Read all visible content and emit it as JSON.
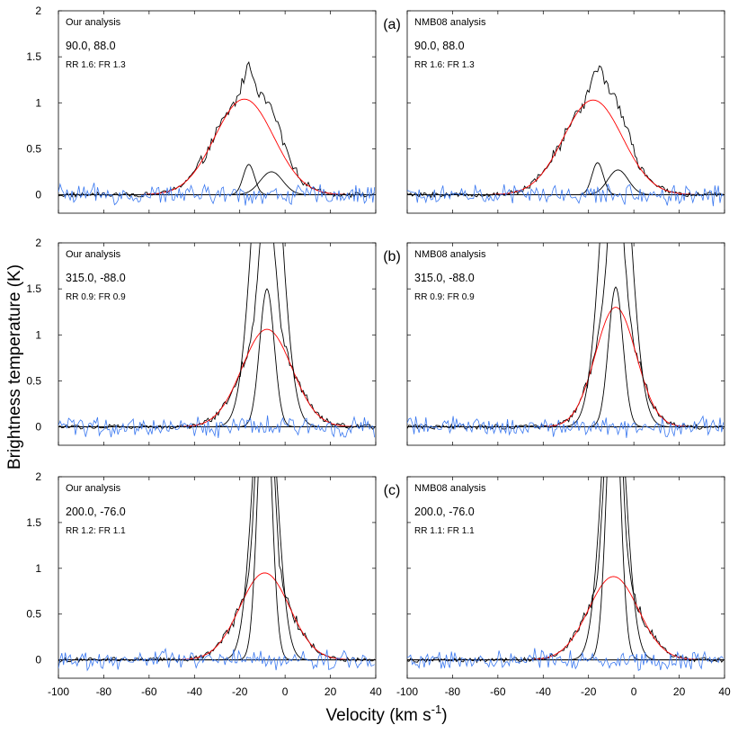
{
  "figure": {
    "ylabel": "Brightness temperature (K)",
    "xlabel_main": "Velocity (km s",
    "xlabel_exp": "-1",
    "xlabel_close": ")"
  },
  "chart_data": [
    {
      "type": "line",
      "row": 0,
      "side": "left",
      "panel_label": "(a)",
      "title": "Our analysis",
      "coords": "90.0, 88.0",
      "ratio": "RR 1.6: FR 1.3",
      "xlim": [
        -100,
        40
      ],
      "ylim": [
        -0.2,
        2
      ],
      "xticks": [
        -100,
        -80,
        -60,
        -40,
        -20,
        0,
        20,
        40
      ],
      "yticks": [
        0,
        0.5,
        1,
        1.5,
        2
      ],
      "ytick_labels": [
        "0",
        "0.5",
        "1",
        "1.5",
        "2"
      ],
      "xtick_labels": [
        "-100",
        "-80",
        "-60",
        "-40",
        "-20",
        "0",
        "20",
        "40"
      ],
      "series": [
        {
          "name": "observed",
          "color": "#000000",
          "kind": "observed"
        },
        {
          "name": "gaussian fit",
          "color": "#ff0000",
          "amp": 1.04,
          "center": -18,
          "sigma": 13
        },
        {
          "name": "narrow component 1",
          "color": "#000000",
          "amp": 0.33,
          "center": -16,
          "sigma": 2.5
        },
        {
          "name": "narrow component 2",
          "color": "#000000",
          "amp": 0.25,
          "center": -6,
          "sigma": 5
        },
        {
          "name": "residual",
          "color": "#3a78f0",
          "kind": "residual"
        }
      ]
    },
    {
      "type": "line",
      "row": 0,
      "side": "right",
      "panel_label": "",
      "title": "NMB08 analysis",
      "coords": "90.0, 88.0",
      "ratio": "RR 1.6: FR 1.3",
      "xlim": [
        -100,
        40
      ],
      "ylim": [
        -0.2,
        2
      ],
      "xticks": [
        -100,
        -80,
        -60,
        -40,
        -20,
        0,
        20,
        40
      ],
      "yticks": [
        0,
        0.5,
        1,
        1.5,
        2
      ],
      "ytick_labels": [
        "0",
        "0.5",
        "1",
        "1.5",
        "2"
      ],
      "xtick_labels": [
        "-100",
        "-80",
        "-60",
        "-40",
        "-20",
        "0",
        "20",
        "40"
      ],
      "series": [
        {
          "name": "observed",
          "color": "#000000",
          "kind": "observed"
        },
        {
          "name": "gaussian fit",
          "color": "#ff0000",
          "amp": 1.03,
          "center": -18,
          "sigma": 13
        },
        {
          "name": "narrow component 1",
          "color": "#000000",
          "amp": 0.35,
          "center": -16,
          "sigma": 2.5
        },
        {
          "name": "narrow component 2",
          "color": "#000000",
          "amp": 0.27,
          "center": -7,
          "sigma": 4.5
        },
        {
          "name": "residual",
          "color": "#3a78f0",
          "kind": "residual"
        }
      ]
    },
    {
      "type": "line",
      "row": 1,
      "side": "left",
      "panel_label": "(b)",
      "title": "Our analysis",
      "coords": "315.0, -88.0",
      "ratio": "RR 0.9: FR 0.9",
      "xlim": [
        -100,
        40
      ],
      "ylim": [
        -0.2,
        2
      ],
      "xticks": [
        -100,
        -80,
        -60,
        -40,
        -20,
        0,
        20,
        40
      ],
      "yticks": [
        0,
        0.5,
        1,
        1.5,
        2
      ],
      "ytick_labels": [
        "0",
        "0.5",
        "1",
        "1.5",
        "2"
      ],
      "xtick_labels": [
        "-100",
        "-80",
        "-60",
        "-40",
        "-20",
        "0",
        "20",
        "40"
      ],
      "series": [
        {
          "name": "observed",
          "color": "#000000",
          "kind": "observed"
        },
        {
          "name": "gaussian fit",
          "color": "#ff0000",
          "amp": 1.06,
          "center": -8,
          "sigma": 11
        },
        {
          "name": "narrow component 1",
          "color": "#000000",
          "amp": 1.5,
          "center": -8,
          "sigma": 3.2
        },
        {
          "name": "wide component",
          "color": "#000000",
          "amp": 4.0,
          "center": -8,
          "sigma": 6
        },
        {
          "name": "residual",
          "color": "#3a78f0",
          "kind": "residual"
        }
      ]
    },
    {
      "type": "line",
      "row": 1,
      "side": "right",
      "panel_label": "",
      "title": "NMB08 analysis",
      "coords": "315.0, -88.0",
      "ratio": "RR 0.9: FR 0.9",
      "xlim": [
        -100,
        40
      ],
      "ylim": [
        -0.2,
        2
      ],
      "xticks": [
        -100,
        -80,
        -60,
        -40,
        -20,
        0,
        20,
        40
      ],
      "yticks": [
        0,
        0.5,
        1,
        1.5,
        2
      ],
      "ytick_labels": [
        "0",
        "0.5",
        "1",
        "1.5",
        "2"
      ],
      "xtick_labels": [
        "-100",
        "-80",
        "-60",
        "-40",
        "-20",
        "0",
        "20",
        "40"
      ],
      "series": [
        {
          "name": "observed",
          "color": "#000000",
          "kind": "observed"
        },
        {
          "name": "gaussian fit",
          "color": "#ff0000",
          "amp": 1.3,
          "center": -8,
          "sigma": 9
        },
        {
          "name": "narrow component 1",
          "color": "#000000",
          "amp": 1.52,
          "center": -8,
          "sigma": 3.2
        },
        {
          "name": "wide component",
          "color": "#000000",
          "amp": 4.0,
          "center": -8,
          "sigma": 6
        },
        {
          "name": "residual",
          "color": "#3a78f0",
          "kind": "residual"
        }
      ]
    },
    {
      "type": "line",
      "row": 2,
      "side": "left",
      "panel_label": "(c)",
      "title": "Our analysis",
      "coords": "200.0, -76.0",
      "ratio": "RR 1.2: FR 1.1",
      "xlim": [
        -100,
        40
      ],
      "ylim": [
        -0.2,
        2
      ],
      "xticks": [
        -100,
        -80,
        -60,
        -40,
        -20,
        0,
        20,
        40
      ],
      "yticks": [
        0,
        0.5,
        1,
        1.5,
        2
      ],
      "ytick_labels": [
        "0",
        "0.5",
        "1",
        "1.5",
        "2"
      ],
      "xtick_labels": [
        "-100",
        "-80",
        "-60",
        "-40",
        "-20",
        "0",
        "20",
        "40"
      ],
      "series": [
        {
          "name": "observed",
          "color": "#000000",
          "kind": "observed"
        },
        {
          "name": "gaussian fit",
          "color": "#ff0000",
          "amp": 0.95,
          "center": -9,
          "sigma": 11
        },
        {
          "name": "narrow component 1",
          "color": "#000000",
          "amp": 3.2,
          "center": -9,
          "sigma": 3
        },
        {
          "name": "wide component",
          "color": "#000000",
          "amp": 3.5,
          "center": -9,
          "sigma": 5
        },
        {
          "name": "residual",
          "color": "#3a78f0",
          "kind": "residual"
        }
      ]
    },
    {
      "type": "line",
      "row": 2,
      "side": "right",
      "panel_label": "",
      "title": "NMB08 analysis",
      "coords": "200.0, -76.0",
      "ratio": "RR 1.1: FR 1.1",
      "xlim": [
        -100,
        40
      ],
      "ylim": [
        -0.2,
        2
      ],
      "xticks": [
        -100,
        -80,
        -60,
        -40,
        -20,
        0,
        20,
        40
      ],
      "yticks": [
        0,
        0.5,
        1,
        1.5,
        2
      ],
      "ytick_labels": [
        "0",
        "0.5",
        "1",
        "1.5",
        "2"
      ],
      "xtick_labels": [
        "-100",
        "-80",
        "-60",
        "-40",
        "-20",
        "0",
        "20",
        "40"
      ],
      "series": [
        {
          "name": "observed",
          "color": "#000000",
          "kind": "observed"
        },
        {
          "name": "gaussian fit",
          "color": "#ff0000",
          "amp": 0.91,
          "center": -9,
          "sigma": 11
        },
        {
          "name": "narrow component 1",
          "color": "#000000",
          "amp": 3.2,
          "center": -9,
          "sigma": 3
        },
        {
          "name": "wide component",
          "color": "#000000",
          "amp": 3.5,
          "center": -9,
          "sigma": 5
        },
        {
          "name": "residual",
          "color": "#3a78f0",
          "kind": "residual"
        }
      ]
    }
  ]
}
